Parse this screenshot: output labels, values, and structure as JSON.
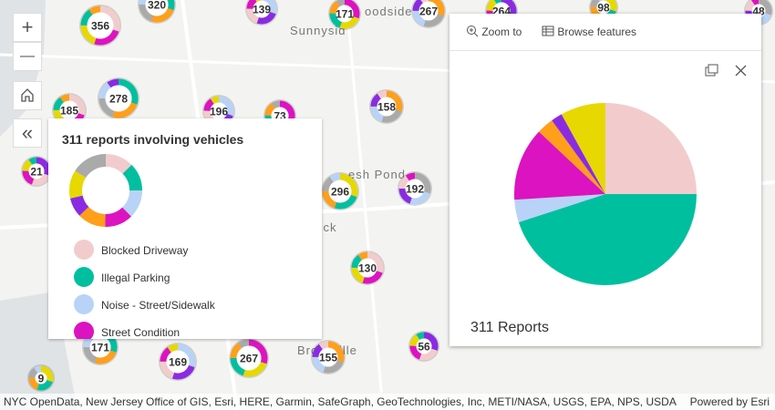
{
  "map": {
    "place_labels": [
      "Sunnysid",
      "oodside",
      "esh Pond",
      "nwick",
      "Bro",
      "ille"
    ],
    "clusters": [
      "356",
      "320",
      "139",
      "171",
      "267",
      "264",
      "98",
      "48",
      "185",
      "278",
      "196",
      "73",
      "158",
      "21",
      "296",
      "192",
      "130",
      "171",
      "169",
      "267",
      "155",
      "56",
      "9"
    ]
  },
  "controls": {
    "zoom_in": "+",
    "zoom_out": "—",
    "collapse": "«"
  },
  "legend": {
    "title": "311 reports involving vehicles",
    "items": [
      {
        "name": "Blocked Driveway",
        "color": "#f2cccc"
      },
      {
        "name": "Illegal Parking",
        "color": "#00bf9f"
      },
      {
        "name": "Noise - Street/Sidewalk",
        "color": "#b8d3f7"
      },
      {
        "name": "Street Condition",
        "color": "#dc13c0"
      }
    ]
  },
  "popup": {
    "actions": [
      "Zoom to",
      "Browse features"
    ],
    "chart": {
      "type": "pie",
      "title": "311 Reports",
      "values": [
        25,
        45,
        4,
        13,
        3,
        2,
        8
      ],
      "colors": [
        "#f2cccc",
        "#00bf9f",
        "#b8d3f7",
        "#dc13c0",
        "#ff9f1a",
        "#8a2be2",
        "#e6d800"
      ]
    }
  },
  "attribution": {
    "text": "NYC OpenData, New Jersey Office of GIS, Esri, HERE, Garmin, SafeGraph, GeoTechnologies, Inc, METI/NASA, USGS, EPA, NPS, USDA",
    "powered": "Powered by Esri"
  }
}
